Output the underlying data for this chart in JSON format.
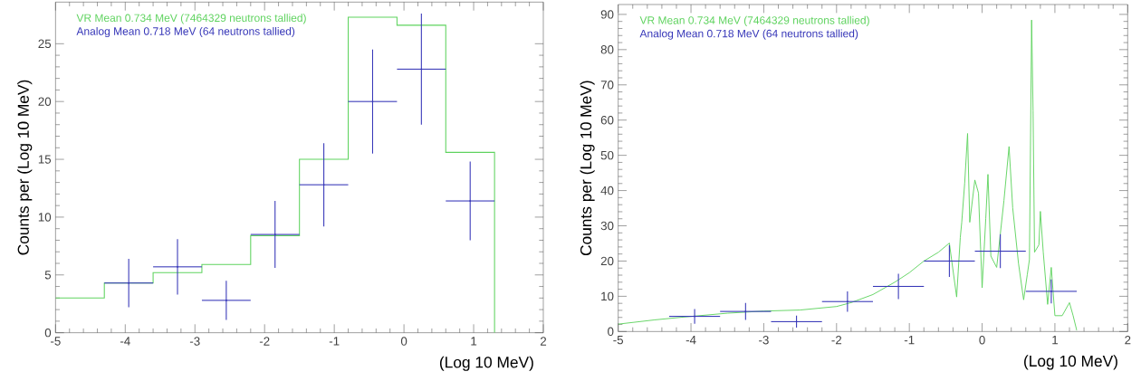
{
  "chart_data": [
    {
      "type": "histogram",
      "xlabel": "(Log 10 MeV)",
      "ylabel": "Counts per (Log 10 MeV)",
      "xlim": [
        -5,
        2
      ],
      "ylim": [
        0,
        28.6
      ],
      "xticks": [
        -5,
        -4,
        -3,
        -2,
        -1,
        0,
        1,
        2
      ],
      "yticks": [
        0,
        5,
        10,
        15,
        20,
        25
      ],
      "legend": "top left",
      "bins": [
        -5,
        -4.3,
        -3.6,
        -2.9,
        -2.2,
        -1.5,
        -0.8,
        -0.1,
        0.6,
        1.3
      ],
      "series": [
        {
          "name": "VR Mean 0.734 MeV (7464329 neutrons tallied)",
          "color": "#5fd35f",
          "values": [
            3.0,
            4.3,
            5.2,
            5.9,
            8.4,
            15.0,
            27.3,
            26.6,
            15.6
          ]
        },
        {
          "type": "scatter",
          "marker": "none",
          "name": "Analog Mean 0.718 MeV (64 neutrons tallied)",
          "color": "#3636b8",
          "x": [
            -3.95,
            -3.25,
            -2.55,
            -1.85,
            -1.15,
            -0.45,
            0.25,
            0.95
          ],
          "values": [
            4.3,
            5.7,
            2.8,
            8.5,
            12.8,
            20.0,
            22.8,
            11.4
          ],
          "errors": [
            2.1,
            2.4,
            1.7,
            2.9,
            3.6,
            4.5,
            4.8,
            3.4
          ],
          "xerrors": [
            0.35,
            0.35,
            0.35,
            0.35,
            0.35,
            0.35,
            0.35,
            0.35
          ]
        }
      ]
    },
    {
      "type": "line",
      "xlabel": "(Log 10 MeV)",
      "ylabel": "Counts per (Log 10 MeV)",
      "xlim": [
        -5,
        2
      ],
      "ylim": [
        0,
        92.8
      ],
      "xticks": [
        -5,
        -4,
        -3,
        -2,
        -1,
        0,
        1,
        2
      ],
      "yticks": [
        0,
        10,
        20,
        30,
        40,
        50,
        60,
        70,
        80,
        90
      ],
      "legend": "top left",
      "series": [
        {
          "name": "VR Mean 0.734 MeV (7464329 neutrons tallied)",
          "color": "#5fd35f",
          "x": [
            -5,
            -4.5,
            -4.1,
            -3.5,
            -3,
            -2.5,
            -2,
            -1.8,
            -1.5,
            -1.2,
            -1,
            -0.8,
            -0.6,
            -0.45,
            -0.42,
            -0.35,
            -0.3,
            -0.28,
            -0.24,
            -0.2,
            -0.17,
            -0.1,
            -0.05,
            0,
            0.05,
            0.08,
            0.12,
            0.2,
            0.25,
            0.3,
            0.37,
            0.42,
            0.5,
            0.57,
            0.62,
            0.65,
            0.68,
            0.7,
            0.72,
            0.78,
            0.8,
            0.84,
            0.9,
            0.95,
            1.0,
            1.1,
            1.2,
            1.25,
            1.3
          ],
          "values": [
            2.1,
            3.3,
            4.1,
            5.2,
            5.8,
            6.1,
            7.1,
            8.2,
            10.5,
            14.0,
            16.7,
            20.0,
            22.5,
            25.1,
            20.4,
            9.8,
            26.7,
            31.0,
            42.0,
            56.2,
            31.0,
            43.0,
            39.3,
            12.4,
            32.0,
            44.6,
            21.4,
            18.2,
            27.7,
            37.2,
            52.5,
            35.1,
            19.3,
            9.0,
            16.1,
            20.4,
            88.4,
            62.6,
            22.5,
            24.6,
            34.1,
            22.5,
            7.7,
            18.2,
            4.5,
            4.5,
            8.2,
            4.5,
            0.3
          ]
        },
        {
          "type": "scatter",
          "marker": "none",
          "name": "Analog Mean 0.718 MeV (64 neutrons tallied)",
          "color": "#3636b8",
          "x": [
            -3.95,
            -3.25,
            -2.55,
            -1.85,
            -1.15,
            -0.45,
            0.25,
            0.95
          ],
          "values": [
            4.3,
            5.7,
            2.8,
            8.5,
            12.8,
            20.0,
            22.8,
            11.4
          ],
          "errors": [
            2.1,
            2.4,
            1.7,
            2.9,
            3.6,
            4.5,
            4.8,
            3.4
          ],
          "xerrors": [
            0.35,
            0.35,
            0.35,
            0.35,
            0.35,
            0.35,
            0.35,
            0.35
          ]
        }
      ]
    }
  ]
}
